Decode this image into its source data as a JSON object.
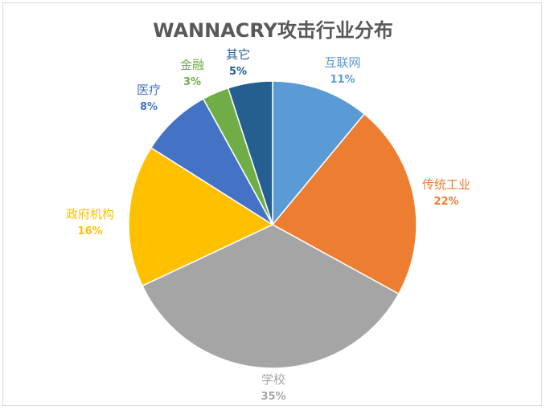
{
  "chart_data": {
    "type": "pie",
    "title": "WANNACRY攻击行业分布",
    "legend": "none",
    "slices": [
      {
        "name": "互联网",
        "value": 11,
        "label": "11%",
        "color": "#5b9bd5"
      },
      {
        "name": "传统工业",
        "value": 22,
        "label": "22%",
        "color": "#ed7d31"
      },
      {
        "name": "学校",
        "value": 35,
        "label": "35%",
        "color": "#a5a5a5"
      },
      {
        "name": "政府机构",
        "value": 16,
        "label": "16%",
        "color": "#ffc000"
      },
      {
        "name": "医疗",
        "value": 8,
        "label": "8%",
        "color": "#4472c4"
      },
      {
        "name": "金融",
        "value": 3,
        "label": "3%",
        "color": "#70ad47"
      },
      {
        "name": "其它",
        "value": 5,
        "label": "5%",
        "color": "#255e91"
      }
    ]
  }
}
